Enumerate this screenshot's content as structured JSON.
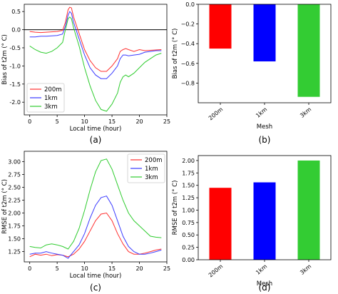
{
  "chart_data": [
    {
      "id": "a",
      "type": "line",
      "panel_label": "(a)",
      "xlabel": "Local time (hour)",
      "ylabel": "Bias of t2m (° C)",
      "xlim": [
        -1,
        25
      ],
      "ylim": [
        -2.35,
        0.7
      ],
      "xticks": [
        0,
        5,
        10,
        15,
        20,
        25
      ],
      "yticks": [
        0.5,
        0.0,
        -0.5,
        -1.0,
        -1.5,
        -2.0
      ],
      "ytick_labels": [
        "0.5",
        "0.0",
        "-0.5",
        "-1.0",
        "-1.5",
        "-2.0"
      ],
      "hline": 0,
      "legend_position": "lower-left",
      "series": [
        {
          "name": "200m",
          "color": "#ff3030",
          "x": [
            0,
            1,
            2,
            3,
            4,
            5,
            6,
            6.5,
            7,
            7.3,
            7.6,
            8,
            9,
            10,
            11,
            12,
            13,
            14,
            15,
            16,
            16.5,
            17,
            17.5,
            18,
            19,
            20,
            21,
            22,
            23,
            24
          ],
          "y": [
            -0.05,
            -0.07,
            -0.08,
            -0.07,
            -0.06,
            -0.05,
            -0.02,
            0.2,
            0.55,
            0.62,
            0.6,
            0.35,
            -0.1,
            -0.55,
            -0.85,
            -1.05,
            -1.15,
            -1.15,
            -1.0,
            -0.8,
            -0.6,
            -0.55,
            -0.52,
            -0.55,
            -0.6,
            -0.55,
            -0.58,
            -0.57,
            -0.56,
            -0.55
          ]
        },
        {
          "name": "1km",
          "color": "#3b3bff",
          "x": [
            0,
            1,
            2,
            3,
            4,
            5,
            6,
            6.5,
            7,
            7.3,
            7.6,
            8,
            9,
            10,
            11,
            12,
            13,
            14,
            15,
            16,
            16.5,
            17,
            17.5,
            18,
            19,
            20,
            21,
            22,
            23,
            24
          ],
          "y": [
            -0.2,
            -0.2,
            -0.18,
            -0.18,
            -0.17,
            -0.16,
            -0.12,
            0.1,
            0.4,
            0.5,
            0.45,
            0.2,
            -0.25,
            -0.7,
            -1.05,
            -1.25,
            -1.35,
            -1.35,
            -1.2,
            -1.0,
            -0.8,
            -0.7,
            -0.7,
            -0.72,
            -0.7,
            -0.68,
            -0.62,
            -0.6,
            -0.58,
            -0.58
          ]
        },
        {
          "name": "3km",
          "color": "#2ecc2e",
          "x": [
            0,
            1,
            2,
            3,
            4,
            5,
            6,
            6.5,
            7,
            7.3,
            7.6,
            8,
            9,
            10,
            11,
            12,
            13,
            14,
            15,
            16,
            16.5,
            17,
            17.5,
            18,
            19,
            20,
            21,
            22,
            23,
            24
          ],
          "y": [
            -0.45,
            -0.55,
            -0.62,
            -0.65,
            -0.6,
            -0.5,
            -0.35,
            0.0,
            0.3,
            0.35,
            0.3,
            0.05,
            -0.45,
            -1.05,
            -1.55,
            -1.95,
            -2.2,
            -2.25,
            -2.05,
            -1.75,
            -1.45,
            -1.3,
            -1.25,
            -1.3,
            -1.2,
            -1.05,
            -0.9,
            -0.8,
            -0.7,
            -0.65
          ]
        }
      ]
    },
    {
      "id": "b",
      "type": "bar",
      "panel_label": "(b)",
      "xlabel": "Mesh",
      "ylabel": "Bias of t2m (° C)",
      "categories": [
        "200m",
        "1km",
        "3km"
      ],
      "values": [
        -0.45,
        -0.58,
        -0.94
      ],
      "colors": [
        "#ff0000",
        "#0000ff",
        "#33cc33"
      ],
      "ylim": [
        -1.0,
        0.0
      ],
      "yticks": [
        0.0,
        -0.2,
        -0.4,
        -0.6,
        -0.8
      ],
      "ytick_labels": [
        "0.0",
        "−0.2",
        "−0.4",
        "−0.6",
        "−0.8"
      ]
    },
    {
      "id": "c",
      "type": "line",
      "panel_label": "(c)",
      "xlabel": "Local time (hour)",
      "ylabel": "RMSE of t2m (° C)",
      "xlim": [
        -1,
        25
      ],
      "ylim": [
        1.05,
        3.2
      ],
      "xticks": [
        0,
        5,
        10,
        15,
        20,
        25
      ],
      "yticks": [
        1.25,
        1.5,
        1.75,
        2.0,
        2.25,
        2.5,
        2.75,
        3.0
      ],
      "ytick_labels": [
        "1.25",
        "1.50",
        "1.75",
        "2.00",
        "2.25",
        "2.50",
        "2.75",
        "3.00"
      ],
      "legend_position": "top-right",
      "series": [
        {
          "name": "200m",
          "color": "#ff3030",
          "x": [
            0,
            1,
            2,
            3,
            4,
            5,
            6,
            7,
            8,
            9,
            10,
            11,
            12,
            13,
            14,
            15,
            16,
            17,
            18,
            19,
            20,
            21,
            22,
            23,
            24
          ],
          "y": [
            1.15,
            1.2,
            1.18,
            1.2,
            1.17,
            1.19,
            1.18,
            1.15,
            1.2,
            1.3,
            1.45,
            1.65,
            1.85,
            1.98,
            2.0,
            1.85,
            1.6,
            1.4,
            1.25,
            1.2,
            1.2,
            1.22,
            1.25,
            1.28,
            1.3
          ]
        },
        {
          "name": "1km",
          "color": "#3b3bff",
          "x": [
            0,
            1,
            2,
            3,
            4,
            5,
            6,
            7,
            8,
            9,
            10,
            11,
            12,
            13,
            14,
            15,
            16,
            17,
            18,
            19,
            20,
            21,
            22,
            23,
            24
          ],
          "y": [
            1.2,
            1.22,
            1.22,
            1.25,
            1.22,
            1.2,
            1.18,
            1.12,
            1.25,
            1.38,
            1.6,
            1.9,
            2.15,
            2.3,
            2.33,
            2.15,
            1.85,
            1.55,
            1.35,
            1.25,
            1.2,
            1.2,
            1.22,
            1.25,
            1.28
          ]
        },
        {
          "name": "3km",
          "color": "#2ecc2e",
          "x": [
            0,
            1,
            2,
            3,
            4,
            5,
            6,
            7,
            8,
            9,
            10,
            11,
            12,
            13,
            14,
            15,
            16,
            17,
            18,
            19,
            20,
            21,
            22,
            23,
            24
          ],
          "y": [
            1.35,
            1.33,
            1.32,
            1.38,
            1.4,
            1.38,
            1.35,
            1.3,
            1.45,
            1.7,
            2.05,
            2.45,
            2.8,
            3.02,
            3.05,
            2.85,
            2.55,
            2.25,
            2.0,
            1.85,
            1.75,
            1.65,
            1.55,
            1.53,
            1.52
          ]
        }
      ]
    },
    {
      "id": "d",
      "type": "bar",
      "panel_label": "(d)",
      "xlabel": "Mesh",
      "ylabel": "RMSE of t2m (° C)",
      "categories": [
        "200m",
        "1km",
        "3km"
      ],
      "values": [
        1.45,
        1.56,
        2.0
      ],
      "colors": [
        "#ff0000",
        "#0000ff",
        "#33cc33"
      ],
      "ylim": [
        0.0,
        2.1
      ],
      "yticks": [
        0.0,
        0.25,
        0.5,
        0.75,
        1.0,
        1.25,
        1.5,
        1.75,
        2.0
      ],
      "ytick_labels": [
        "0.00",
        "0.25",
        "0.50",
        "0.75",
        "1.00",
        "1.25",
        "1.50",
        "1.75",
        "2.00"
      ]
    }
  ]
}
